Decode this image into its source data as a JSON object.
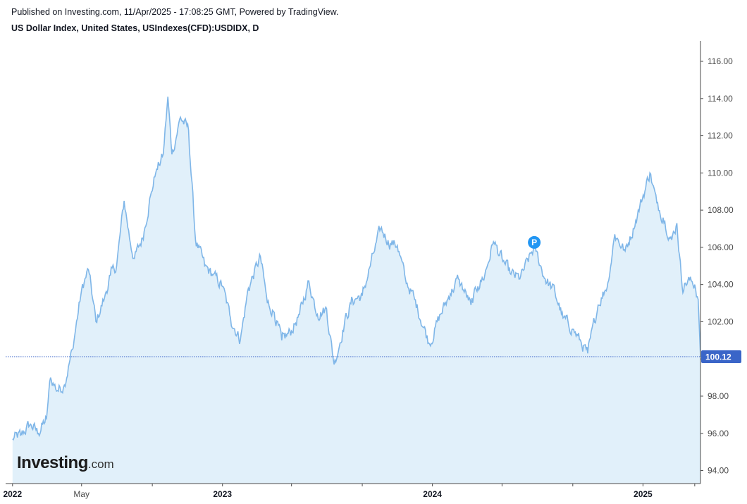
{
  "header": {
    "published": "Published on Investing.com, 11/Apr/2025 - 17:08:25 GMT, Powered by TradingView.",
    "title": "US Dollar Index, United States, USIndexes(CFD):USDIDX, D"
  },
  "logo": {
    "main": "Investing",
    "domain": ".com"
  },
  "colors": {
    "line": "#7fb6e8",
    "fill": "#e1f0fa",
    "last_price_line": "#3a65c8",
    "last_price_badge": "#3a65c8",
    "marker": "#2196f3"
  },
  "chart_data": {
    "type": "area",
    "title": "US Dollar Index, United States, USIndexes(CFD):USDIDX, D",
    "x": [
      "2022-01-01",
      "2022-01-15",
      "2022-02-01",
      "2022-02-15",
      "2022-03-01",
      "2022-03-08",
      "2022-03-20",
      "2022-04-01",
      "2022-04-15",
      "2022-05-01",
      "2022-05-13",
      "2022-05-26",
      "2022-06-10",
      "2022-06-20",
      "2022-07-01",
      "2022-07-14",
      "2022-07-25",
      "2022-08-01",
      "2022-08-15",
      "2022-08-29",
      "2022-09-07",
      "2022-09-20",
      "2022-09-28",
      "2022-10-05",
      "2022-10-20",
      "2022-11-03",
      "2022-11-15",
      "2022-12-01",
      "2022-12-15",
      "2023-01-01",
      "2023-01-15",
      "2023-02-01",
      "2023-02-15",
      "2023-03-08",
      "2023-03-20",
      "2023-04-01",
      "2023-04-14",
      "2023-05-01",
      "2023-05-15",
      "2023-05-31",
      "2023-06-15",
      "2023-07-01",
      "2023-07-14",
      "2023-08-01",
      "2023-08-15",
      "2023-09-01",
      "2023-09-15",
      "2023-10-03",
      "2023-10-20",
      "2023-11-01",
      "2023-11-15",
      "2023-12-01",
      "2023-12-27",
      "2024-01-15",
      "2024-02-01",
      "2024-02-15",
      "2024-03-08",
      "2024-03-20",
      "2024-04-01",
      "2024-04-16",
      "2024-05-01",
      "2024-05-15",
      "2024-06-01",
      "2024-06-26",
      "2024-07-15",
      "2024-08-01",
      "2024-08-15",
      "2024-09-01",
      "2024-09-27",
      "2024-10-15",
      "2024-11-01",
      "2024-11-13",
      "2024-12-01",
      "2024-12-15",
      "2025-01-13",
      "2025-01-25",
      "2025-02-05",
      "2025-02-20",
      "2025-03-01",
      "2025-03-10",
      "2025-03-20",
      "2025-04-01",
      "2025-04-07",
      "2025-04-11"
    ],
    "values": [
      95.7,
      95.9,
      96.5,
      96.0,
      96.8,
      99.0,
      98.3,
      98.6,
      100.5,
      103.7,
      104.8,
      102.0,
      103.3,
      104.5,
      105.0,
      108.5,
      106.2,
      105.4,
      106.5,
      108.8,
      110.0,
      111.0,
      114.1,
      111.0,
      113.0,
      112.3,
      106.4,
      105.0,
      104.5,
      103.9,
      102.2,
      101.0,
      103.8,
      105.5,
      103.0,
      102.5,
      101.0,
      101.5,
      102.4,
      104.2,
      102.4,
      102.7,
      99.7,
      101.9,
      103.2,
      103.4,
      105.0,
      107.0,
      106.2,
      106.1,
      104.3,
      103.2,
      100.8,
      102.4,
      103.5,
      104.3,
      102.9,
      103.9,
      104.5,
      106.3,
      105.4,
      104.6,
      104.3,
      106.0,
      104.3,
      103.6,
      102.2,
      101.6,
      100.3,
      102.9,
      104.1,
      106.7,
      105.8,
      107.0,
      110.0,
      108.4,
      107.6,
      106.4,
      107.3,
      103.9,
      104.2,
      104.0,
      103.2,
      100.12
    ],
    "xticks": [
      {
        "date": "2022-01-01",
        "label": "2022",
        "bold": true
      },
      {
        "date": "2022-05-01",
        "label": "May",
        "bold": false
      },
      {
        "date": "2022-09-01",
        "label": "",
        "bold": false
      },
      {
        "date": "2023-01-01",
        "label": "2023",
        "bold": true
      },
      {
        "date": "2023-05-01",
        "label": "",
        "bold": false
      },
      {
        "date": "2023-09-01",
        "label": "",
        "bold": false
      },
      {
        "date": "2024-01-01",
        "label": "2024",
        "bold": true
      },
      {
        "date": "2024-05-01",
        "label": "",
        "bold": false
      },
      {
        "date": "2024-09-01",
        "label": "",
        "bold": false
      },
      {
        "date": "2025-01-01",
        "label": "2025",
        "bold": true
      },
      {
        "date": "2025-04-01",
        "label": "",
        "bold": false
      }
    ],
    "yticks": [
      94,
      96,
      98,
      100,
      102,
      104,
      106,
      108,
      110,
      112,
      114,
      116
    ],
    "ytick_labels": [
      "94.00",
      "96.00",
      "98.00",
      "100.00",
      "102.00",
      "104.00",
      "106.00",
      "108.00",
      "110.00",
      "112.00",
      "114.00",
      "116.00"
    ],
    "xlim": [
      "2021-12-20",
      "2025-04-11"
    ],
    "ylim": [
      93.3,
      117.1
    ],
    "last_value": 100.12,
    "last_value_label": "100.12",
    "marker": {
      "date": "2024-06-26",
      "value": 106.0,
      "label": "P"
    },
    "grid": false,
    "legend": "none",
    "xlabel": "",
    "ylabel": ""
  }
}
